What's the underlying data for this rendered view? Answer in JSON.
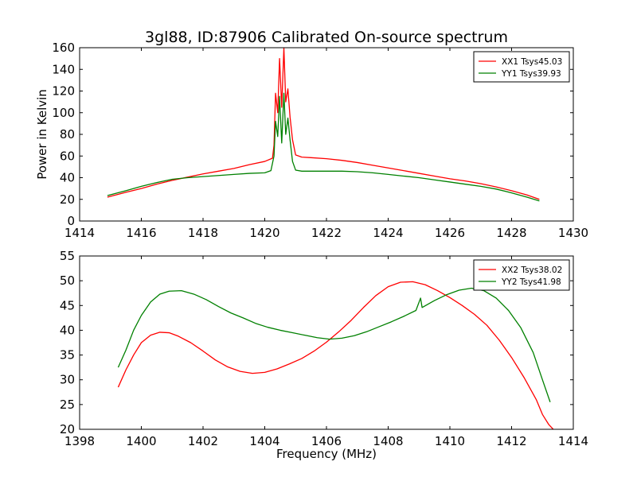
{
  "chart_data": [
    {
      "type": "line",
      "title": "3gl88, ID:87906 Calibrated On-source spectrum",
      "xlabel": "",
      "ylabel": "Power in Kelvin",
      "xlim": [
        1414,
        1430
      ],
      "ylim": [
        0,
        160
      ],
      "xticks": [
        1414,
        1416,
        1418,
        1420,
        1422,
        1424,
        1426,
        1428,
        1430
      ],
      "yticks": [
        0,
        20,
        40,
        60,
        80,
        100,
        120,
        140,
        160
      ],
      "grid": false,
      "legend_position": "top-right",
      "series": [
        {
          "name": "XX1 Tsys45.03",
          "color": "#ff0000",
          "points": [
            [
              1414.9,
              22
            ],
            [
              1415.5,
              26.5
            ],
            [
              1416,
              30
            ],
            [
              1416.5,
              34
            ],
            [
              1417,
              37.5
            ],
            [
              1417.5,
              40.5
            ],
            [
              1418,
              43.5
            ],
            [
              1418.5,
              46
            ],
            [
              1419,
              48.5
            ],
            [
              1419.5,
              52
            ],
            [
              1420,
              55
            ],
            [
              1420.25,
              58
            ],
            [
              1420.3,
              70
            ],
            [
              1420.35,
              118
            ],
            [
              1420.42,
              100
            ],
            [
              1420.48,
              150
            ],
            [
              1420.55,
              105
            ],
            [
              1420.62,
              160
            ],
            [
              1420.68,
              110
            ],
            [
              1420.75,
              122
            ],
            [
              1420.82,
              96
            ],
            [
              1420.9,
              75
            ],
            [
              1421,
              61
            ],
            [
              1421.2,
              59
            ],
            [
              1421.5,
              58.5
            ],
            [
              1422,
              57.5
            ],
            [
              1422.5,
              56
            ],
            [
              1423,
              54
            ],
            [
              1423.5,
              51.5
            ],
            [
              1424,
              49
            ],
            [
              1424.5,
              46.5
            ],
            [
              1425,
              44
            ],
            [
              1425.5,
              41.5
            ],
            [
              1426,
              39
            ],
            [
              1426.5,
              37
            ],
            [
              1427,
              34.5
            ],
            [
              1427.5,
              31.5
            ],
            [
              1428,
              28
            ],
            [
              1428.5,
              24
            ],
            [
              1428.9,
              20
            ]
          ]
        },
        {
          "name": "YY1 Tsys39.93",
          "color": "#008000",
          "points": [
            [
              1414.9,
              23.5
            ],
            [
              1415.5,
              28
            ],
            [
              1416,
              32
            ],
            [
              1416.5,
              35.5
            ],
            [
              1417,
              38.5
            ],
            [
              1417.5,
              40
            ],
            [
              1418,
              41
            ],
            [
              1418.5,
              42
            ],
            [
              1419,
              43
            ],
            [
              1419.5,
              44
            ],
            [
              1420,
              44.5
            ],
            [
              1420.2,
              46.5
            ],
            [
              1420.3,
              60
            ],
            [
              1420.35,
              92
            ],
            [
              1420.42,
              78
            ],
            [
              1420.48,
              115
            ],
            [
              1420.55,
              72
            ],
            [
              1420.62,
              118
            ],
            [
              1420.68,
              80
            ],
            [
              1420.75,
              95
            ],
            [
              1420.82,
              75
            ],
            [
              1420.9,
              55
            ],
            [
              1421,
              47
            ],
            [
              1421.2,
              46
            ],
            [
              1421.5,
              46
            ],
            [
              1422,
              46
            ],
            [
              1422.5,
              46
            ],
            [
              1423,
              45.5
            ],
            [
              1423.5,
              44.5
            ],
            [
              1424,
              43
            ],
            [
              1424.5,
              41.5
            ],
            [
              1425,
              40
            ],
            [
              1425.5,
              38
            ],
            [
              1426,
              36
            ],
            [
              1426.5,
              34
            ],
            [
              1427,
              32
            ],
            [
              1427.5,
              29.5
            ],
            [
              1428,
              26
            ],
            [
              1428.5,
              22
            ],
            [
              1428.9,
              18.5
            ]
          ]
        }
      ]
    },
    {
      "type": "line",
      "title": "",
      "xlabel": "Frequency (MHz)",
      "ylabel": "",
      "xlim": [
        1398,
        1414
      ],
      "ylim": [
        20,
        55
      ],
      "xticks": [
        1398,
        1400,
        1402,
        1404,
        1406,
        1408,
        1410,
        1412,
        1414
      ],
      "yticks": [
        20,
        25,
        30,
        35,
        40,
        45,
        50,
        55
      ],
      "grid": false,
      "legend_position": "top-right",
      "series": [
        {
          "name": "XX2 Tsys38.02",
          "color": "#ff0000",
          "points": [
            [
              1399.25,
              28.5
            ],
            [
              1399.5,
              32
            ],
            [
              1399.75,
              35
            ],
            [
              1400,
              37.5
            ],
            [
              1400.3,
              39
            ],
            [
              1400.6,
              39.6
            ],
            [
              1400.9,
              39.5
            ],
            [
              1401.2,
              38.8
            ],
            [
              1401.6,
              37.5
            ],
            [
              1402,
              35.8
            ],
            [
              1402.4,
              34
            ],
            [
              1402.8,
              32.6
            ],
            [
              1403.2,
              31.7
            ],
            [
              1403.6,
              31.3
            ],
            [
              1404,
              31.5
            ],
            [
              1404.4,
              32.2
            ],
            [
              1404.8,
              33.2
            ],
            [
              1405.2,
              34.3
            ],
            [
              1405.6,
              35.8
            ],
            [
              1406,
              37.6
            ],
            [
              1406.4,
              39.7
            ],
            [
              1406.8,
              42
            ],
            [
              1407.2,
              44.6
            ],
            [
              1407.6,
              47
            ],
            [
              1408,
              48.8
            ],
            [
              1408.4,
              49.7
            ],
            [
              1408.8,
              49.8
            ],
            [
              1409.2,
              49.2
            ],
            [
              1409.6,
              48
            ],
            [
              1410,
              46.6
            ],
            [
              1410.4,
              45
            ],
            [
              1410.8,
              43.2
            ],
            [
              1411.2,
              41
            ],
            [
              1411.6,
              38
            ],
            [
              1412,
              34.5
            ],
            [
              1412.4,
              30.5
            ],
            [
              1412.8,
              26
            ],
            [
              1413,
              23
            ],
            [
              1413.2,
              21
            ],
            [
              1413.35,
              20
            ]
          ]
        },
        {
          "name": "YY2 Tsys41.98",
          "color": "#008000",
          "points": [
            [
              1399.25,
              32.5
            ],
            [
              1399.5,
              36
            ],
            [
              1399.75,
              40
            ],
            [
              1400,
              43
            ],
            [
              1400.3,
              45.7
            ],
            [
              1400.6,
              47.3
            ],
            [
              1400.9,
              47.9
            ],
            [
              1401.3,
              48
            ],
            [
              1401.7,
              47.3
            ],
            [
              1402.1,
              46.2
            ],
            [
              1402.5,
              44.8
            ],
            [
              1402.9,
              43.5
            ],
            [
              1403.3,
              42.5
            ],
            [
              1403.7,
              41.4
            ],
            [
              1404.1,
              40.6
            ],
            [
              1404.5,
              40
            ],
            [
              1404.9,
              39.5
            ],
            [
              1405.3,
              39
            ],
            [
              1405.7,
              38.5
            ],
            [
              1406.1,
              38.2
            ],
            [
              1406.5,
              38.4
            ],
            [
              1406.9,
              38.9
            ],
            [
              1407.3,
              39.7
            ],
            [
              1407.7,
              40.7
            ],
            [
              1408.1,
              41.7
            ],
            [
              1408.5,
              42.8
            ],
            [
              1408.9,
              44
            ],
            [
              1409.05,
              46.5
            ],
            [
              1409.1,
              44.6
            ],
            [
              1409.5,
              46
            ],
            [
              1409.9,
              47.2
            ],
            [
              1410.3,
              48.1
            ],
            [
              1410.7,
              48.5
            ],
            [
              1411.1,
              48
            ],
            [
              1411.5,
              46.5
            ],
            [
              1411.9,
              44
            ],
            [
              1412.3,
              40.5
            ],
            [
              1412.7,
              35.5
            ],
            [
              1413,
              30
            ],
            [
              1413.25,
              25.5
            ]
          ]
        }
      ]
    }
  ]
}
